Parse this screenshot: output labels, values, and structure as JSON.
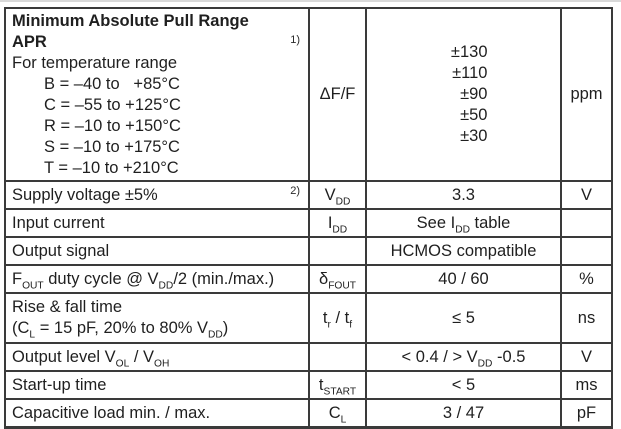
{
  "table": {
    "row1": {
      "title_line1": "Minimum Absolute Pull Range",
      "title_line2": "APR",
      "note": "1)",
      "subtitle": "For temperature range",
      "ranges": [
        "B = –40 to   +85°C",
        "C = –55 to +125°C",
        "R = –10 to +150°C",
        "S = –10 to +175°C",
        "T = –10 to +210°C"
      ],
      "symbol": "ΔF/F",
      "values": [
        "±130",
        "±110",
        "±90",
        "±50",
        "±30"
      ],
      "unit": "ppm"
    },
    "rows": [
      {
        "param": "Supply voltage ±5%",
        "note": "2)",
        "symbol": "V_{DD}",
        "value": "3.3",
        "unit": "V"
      },
      {
        "param": "Input current",
        "symbol": "I_{DD}",
        "value": "See I_{DD} table",
        "unit": ""
      },
      {
        "param": "Output signal",
        "symbol": "",
        "value": "HCMOS compatible",
        "unit": ""
      },
      {
        "param": "F_{OUT} duty cycle @ V_{DD}/2 (min./max.)",
        "symbol": "δ_{FOUT}",
        "value": "40 / 60",
        "unit": "%"
      },
      {
        "param": "Rise & fall time\n(C_{L} = 15 pF, 20% to 80% V_{DD})",
        "symbol": "t_{r} / t_{f}",
        "value": "≤ 5",
        "unit": "ns"
      },
      {
        "param": "Output level V_{OL} / V_{OH}",
        "symbol": "",
        "value": "< 0.4 / > V_{DD} -0.5",
        "unit": "V"
      },
      {
        "param": "Start-up time",
        "symbol": "t_{START}",
        "value": "< 5",
        "unit": "ms"
      },
      {
        "param": "Capacitive load min. / max.",
        "symbol": "C_{L}",
        "value": "3 / 47",
        "unit": "pF"
      }
    ]
  }
}
